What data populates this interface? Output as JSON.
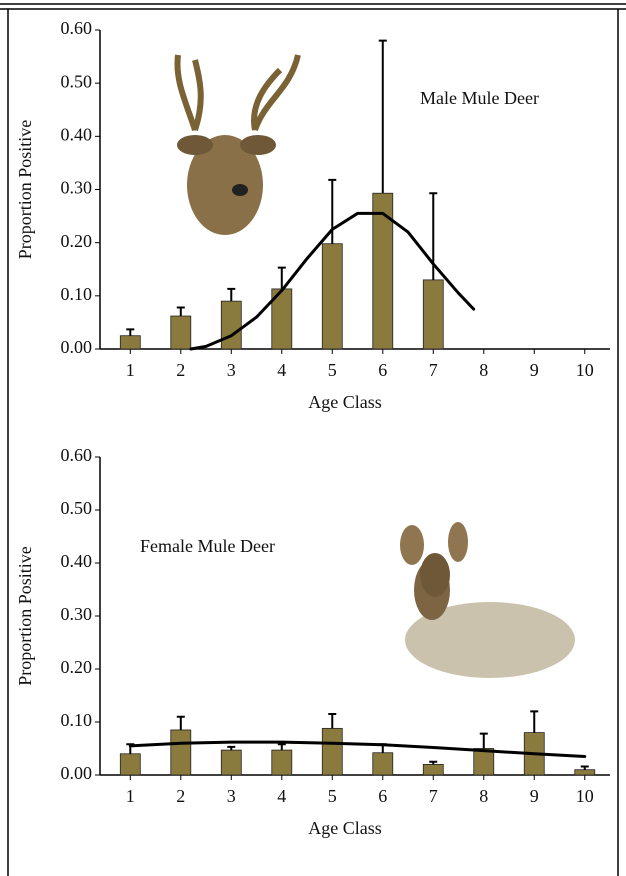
{
  "chart_data": [
    {
      "type": "bar",
      "title": "Male Mule Deer",
      "x_label": "Age Class",
      "y_label": "Proportion Positive",
      "color": "#8b7a3e",
      "x": [
        1,
        2,
        3,
        4,
        5,
        6,
        7,
        8,
        9,
        10
      ],
      "values": [
        0.025,
        0.062,
        0.09,
        0.113,
        0.198,
        0.293,
        0.13,
        null,
        null,
        null
      ],
      "errors": [
        0.012,
        0.016,
        0.023,
        0.04,
        0.12,
        0.287,
        0.163,
        null,
        null,
        null
      ],
      "curve": {
        "x": [
          2.2,
          2.5,
          3,
          3.5,
          4,
          4.5,
          5,
          5.5,
          6,
          6.5,
          7,
          7.5,
          7.8
        ],
        "y": [
          0.0,
          0.005,
          0.025,
          0.06,
          0.11,
          0.17,
          0.225,
          0.255,
          0.255,
          0.22,
          0.16,
          0.105,
          0.075
        ]
      },
      "xlim": [
        0.4,
        10.5
      ],
      "xticks": [
        1,
        2,
        3,
        4,
        5,
        6,
        7,
        8,
        9,
        10
      ],
      "ylim": [
        0,
        0.6
      ],
      "yticks": [
        {
          "value": 0,
          "label": "0.00"
        },
        {
          "value": 0.1,
          "label": "0.10"
        },
        {
          "value": 0.2,
          "label": "0.20"
        },
        {
          "value": 0.3,
          "label": "0.30"
        },
        {
          "value": 0.4,
          "label": "0.40"
        },
        {
          "value": 0.5,
          "label": "0.50"
        },
        {
          "value": 0.6,
          "label": "0.60"
        }
      ]
    },
    {
      "type": "bar",
      "title": "Female Mule Deer",
      "x_label": "Age Class",
      "y_label": "Proportion Positive",
      "color": "#8b7a3e",
      "x": [
        1,
        2,
        3,
        4,
        5,
        6,
        7,
        8,
        9,
        10
      ],
      "values": [
        0.04,
        0.085,
        0.047,
        0.047,
        0.088,
        0.042,
        0.02,
        0.05,
        0.08,
        0.01
      ],
      "errors": [
        0.018,
        0.025,
        0.006,
        0.011,
        0.027,
        0.016,
        0.005,
        0.028,
        0.04,
        0.006
      ],
      "curve": {
        "x": [
          1,
          2,
          3,
          4,
          5,
          6,
          7,
          8,
          9,
          10
        ],
        "y": [
          0.055,
          0.06,
          0.062,
          0.062,
          0.06,
          0.057,
          0.052,
          0.046,
          0.04,
          0.035
        ]
      },
      "xlim": [
        0.4,
        10.5
      ],
      "xticks": [
        1,
        2,
        3,
        4,
        5,
        6,
        7,
        8,
        9,
        10
      ],
      "ylim": [
        0,
        0.6
      ],
      "yticks": [
        {
          "value": 0,
          "label": "0.00"
        },
        {
          "value": 0.1,
          "label": "0.10"
        },
        {
          "value": 0.2,
          "label": "0.20"
        },
        {
          "value": 0.3,
          "label": "0.30"
        },
        {
          "value": 0.4,
          "label": "0.40"
        },
        {
          "value": 0.5,
          "label": "0.50"
        },
        {
          "value": 0.6,
          "label": "0.60"
        }
      ]
    }
  ]
}
